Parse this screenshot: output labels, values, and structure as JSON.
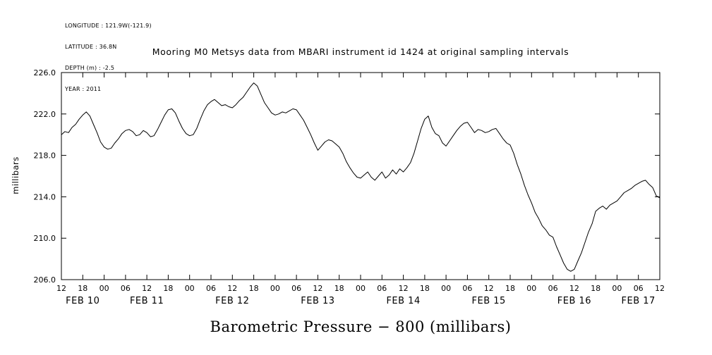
{
  "header": {
    "metadata_lines": [
      "LONGITUDE : 121.9W(-121.9)",
      "LATITUDE : 36.8N",
      "DEPTH (m) : -2.5",
      "YEAR : 2011"
    ]
  },
  "colors": {
    "line": "#000000",
    "axis": "#000000",
    "background": "#ffffff"
  },
  "chart_data": {
    "type": "line",
    "title": "Mooring M0 Metsys data from MBARI instrument id 1424 at original sampling intervals",
    "ylabel": "millibars",
    "xlabel": "Barometric Pressure − 800 (millibars)",
    "ylim": [
      206.0,
      226.0
    ],
    "yticks": [
      206.0,
      210.0,
      214.0,
      218.0,
      222.0,
      226.0
    ],
    "xlim_hours": [
      0,
      168
    ],
    "grid": false,
    "legend": "none",
    "x_ticks": [
      {
        "hour": 0,
        "label": "12"
      },
      {
        "hour": 6,
        "label": "18"
      },
      {
        "hour": 12,
        "label": "00"
      },
      {
        "hour": 18,
        "label": "06"
      },
      {
        "hour": 24,
        "label": "12"
      },
      {
        "hour": 30,
        "label": "18"
      },
      {
        "hour": 36,
        "label": "00"
      },
      {
        "hour": 42,
        "label": "06"
      },
      {
        "hour": 48,
        "label": "12"
      },
      {
        "hour": 54,
        "label": "18"
      },
      {
        "hour": 60,
        "label": "00"
      },
      {
        "hour": 66,
        "label": "06"
      },
      {
        "hour": 72,
        "label": "12"
      },
      {
        "hour": 78,
        "label": "18"
      },
      {
        "hour": 84,
        "label": "00"
      },
      {
        "hour": 90,
        "label": "06"
      },
      {
        "hour": 96,
        "label": "12"
      },
      {
        "hour": 102,
        "label": "18"
      },
      {
        "hour": 108,
        "label": "00"
      },
      {
        "hour": 114,
        "label": "06"
      },
      {
        "hour": 120,
        "label": "12"
      },
      {
        "hour": 126,
        "label": "18"
      },
      {
        "hour": 132,
        "label": "00"
      },
      {
        "hour": 138,
        "label": "06"
      },
      {
        "hour": 144,
        "label": "12"
      },
      {
        "hour": 150,
        "label": "18"
      },
      {
        "hour": 156,
        "label": "00"
      },
      {
        "hour": 162,
        "label": "06"
      },
      {
        "hour": 168,
        "label": "12"
      }
    ],
    "day_labels": [
      {
        "label": "FEB 10",
        "center_hour": 6
      },
      {
        "label": "FEB 11",
        "center_hour": 24
      },
      {
        "label": "FEB 12",
        "center_hour": 48
      },
      {
        "label": "FEB 13",
        "center_hour": 72
      },
      {
        "label": "FEB 14",
        "center_hour": 96
      },
      {
        "label": "FEB 15",
        "center_hour": 120
      },
      {
        "label": "FEB 16",
        "center_hour": 144
      },
      {
        "label": "FEB 17",
        "center_hour": 162
      }
    ],
    "x": [
      0,
      1,
      2,
      3,
      4,
      5,
      6,
      7,
      8,
      9,
      10,
      11,
      12,
      13,
      14,
      15,
      16,
      17,
      18,
      19,
      20,
      21,
      22,
      23,
      24,
      25,
      26,
      27,
      28,
      29,
      30,
      31,
      32,
      33,
      34,
      35,
      36,
      37,
      38,
      39,
      40,
      41,
      42,
      43,
      44,
      45,
      46,
      47,
      48,
      49,
      50,
      51,
      52,
      53,
      54,
      55,
      56,
      57,
      58,
      59,
      60,
      61,
      62,
      63,
      64,
      65,
      66,
      67,
      68,
      69,
      70,
      71,
      72,
      73,
      74,
      75,
      76,
      77,
      78,
      79,
      80,
      81,
      82,
      83,
      84,
      85,
      86,
      87,
      88,
      89,
      90,
      91,
      92,
      93,
      94,
      95,
      96,
      97,
      98,
      99,
      100,
      101,
      102,
      103,
      104,
      105,
      106,
      107,
      108,
      109,
      110,
      111,
      112,
      113,
      114,
      115,
      116,
      117,
      118,
      119,
      120,
      121,
      122,
      123,
      124,
      125,
      126,
      127,
      128,
      129,
      130,
      131,
      132,
      133,
      134,
      135,
      136,
      137,
      138,
      139,
      140,
      141,
      142,
      143,
      144,
      145,
      146,
      147,
      148,
      149,
      150,
      151,
      152,
      153,
      154,
      155,
      156,
      157,
      158,
      159,
      160,
      161,
      162,
      163,
      164,
      165,
      166,
      167,
      168
    ],
    "values": [
      220.0,
      220.3,
      220.2,
      220.7,
      221.0,
      221.5,
      221.9,
      222.2,
      221.8,
      221.0,
      220.2,
      219.3,
      218.8,
      218.6,
      218.7,
      219.2,
      219.6,
      220.1,
      220.4,
      220.5,
      220.3,
      219.9,
      220.0,
      220.4,
      220.2,
      219.8,
      219.9,
      220.5,
      221.2,
      221.9,
      222.4,
      222.5,
      222.1,
      221.3,
      220.6,
      220.1,
      219.9,
      220.0,
      220.6,
      221.5,
      222.3,
      222.9,
      223.2,
      223.4,
      223.1,
      222.8,
      222.9,
      222.7,
      222.6,
      222.9,
      223.3,
      223.6,
      224.1,
      224.6,
      225.0,
      224.7,
      223.9,
      223.1,
      222.6,
      222.1,
      221.9,
      222.0,
      222.2,
      222.1,
      222.3,
      222.5,
      222.4,
      221.9,
      221.4,
      220.7,
      220.0,
      219.2,
      218.5,
      218.9,
      219.3,
      219.5,
      219.4,
      219.1,
      218.8,
      218.2,
      217.4,
      216.8,
      216.3,
      215.9,
      215.8,
      216.1,
      216.4,
      215.9,
      215.6,
      216.0,
      216.4,
      215.8,
      216.1,
      216.6,
      216.2,
      216.7,
      216.4,
      216.8,
      217.3,
      218.2,
      219.4,
      220.6,
      221.5,
      221.8,
      220.7,
      220.1,
      219.9,
      219.2,
      218.9,
      219.4,
      219.9,
      220.4,
      220.8,
      221.1,
      221.2,
      220.7,
      220.2,
      220.5,
      220.4,
      220.2,
      220.3,
      220.5,
      220.6,
      220.1,
      219.6,
      219.2,
      219.0,
      218.2,
      217.1,
      216.2,
      215.1,
      214.2,
      213.4,
      212.5,
      211.9,
      211.2,
      210.8,
      210.3,
      210.1,
      209.2,
      208.4,
      207.6,
      207.0,
      206.8,
      207.0,
      207.8,
      208.6,
      209.6,
      210.6,
      211.4,
      212.6,
      212.9,
      213.1,
      212.8,
      213.2,
      213.4,
      213.6,
      214.0,
      214.4,
      214.6,
      214.8,
      215.1,
      215.3,
      215.5,
      215.6,
      215.2,
      214.9,
      214.1,
      213.9
    ]
  }
}
